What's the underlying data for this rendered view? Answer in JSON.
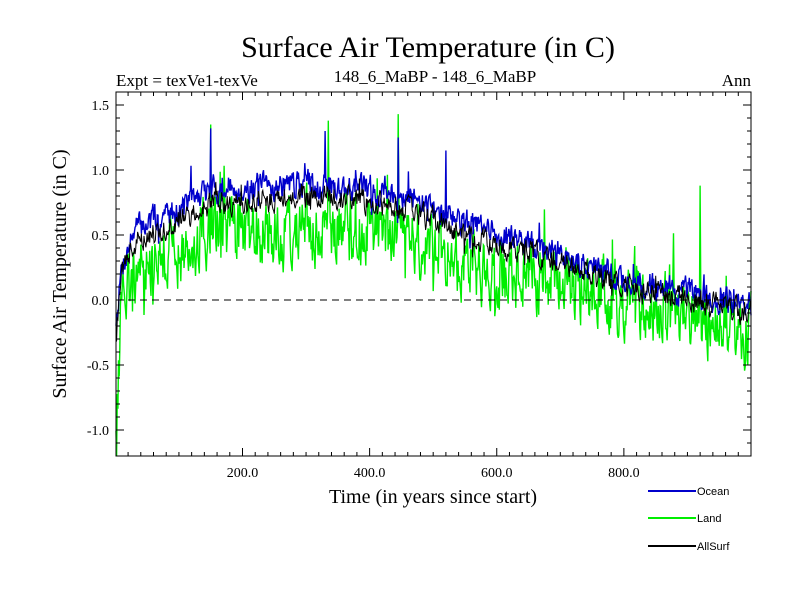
{
  "chart_data": {
    "type": "line",
    "title": "Surface Air Temperature (in C)",
    "subtitle_left": "Expt = texVe1-texVe",
    "subtitle_center": "148_6_MaBP - 148_6_MaBP",
    "subtitle_right": "Ann",
    "xlabel": "Time (in years since start)",
    "ylabel": "Surface Air Temperature (in C)",
    "xlim": [
      1,
      1000
    ],
    "ylim": [
      -1.2,
      1.6
    ],
    "x_ticks": [
      200,
      400,
      600,
      800
    ],
    "x_tick_labels": [
      "200.0",
      "400.0",
      "600.0",
      "800.0"
    ],
    "y_ticks": [
      -1.0,
      -0.5,
      0.0,
      0.5,
      1.0,
      1.5
    ],
    "y_tick_labels": [
      "-1.0",
      "-0.5",
      "0.0",
      "0.5",
      "1.0",
      "1.5"
    ],
    "reference_line": 0.0,
    "series": [
      {
        "name": "Ocean",
        "color": "#0000cc",
        "trend": [
          [
            1,
            -0.15
          ],
          [
            10,
            0.25
          ],
          [
            30,
            0.55
          ],
          [
            100,
            0.7
          ],
          [
            150,
            0.85
          ],
          [
            200,
            0.85
          ],
          [
            300,
            0.9
          ],
          [
            400,
            0.85
          ],
          [
            450,
            0.82
          ],
          [
            500,
            0.7
          ],
          [
            600,
            0.5
          ],
          [
            700,
            0.35
          ],
          [
            800,
            0.15
          ],
          [
            900,
            0.05
          ],
          [
            1000,
            -0.05
          ]
        ],
        "noise_amplitude": 0.14,
        "peaks": [
          [
            150,
            1.32
          ],
          [
            330,
            1.3
          ],
          [
            445,
            1.25
          ],
          [
            520,
            1.15
          ]
        ]
      },
      {
        "name": "Land",
        "color": "#00ee00",
        "trend": [
          [
            1,
            -0.9
          ],
          [
            10,
            0.0
          ],
          [
            30,
            0.3
          ],
          [
            100,
            0.4
          ],
          [
            150,
            0.55
          ],
          [
            200,
            0.5
          ],
          [
            300,
            0.55
          ],
          [
            400,
            0.5
          ],
          [
            450,
            0.55
          ],
          [
            500,
            0.4
          ],
          [
            600,
            0.2
          ],
          [
            700,
            0.15
          ],
          [
            800,
            0.0
          ],
          [
            900,
            -0.15
          ],
          [
            1000,
            -0.25
          ]
        ],
        "noise_amplitude": 0.35,
        "peaks": [
          [
            150,
            1.35
          ],
          [
            335,
            1.38
          ],
          [
            445,
            1.43
          ],
          [
            920,
            0.88
          ]
        ]
      },
      {
        "name": "AllSurf",
        "color": "#000000",
        "trend": [
          [
            1,
            -0.3
          ],
          [
            10,
            0.2
          ],
          [
            30,
            0.45
          ],
          [
            100,
            0.6
          ],
          [
            150,
            0.75
          ],
          [
            200,
            0.75
          ],
          [
            300,
            0.8
          ],
          [
            400,
            0.75
          ],
          [
            450,
            0.72
          ],
          [
            500,
            0.6
          ],
          [
            600,
            0.42
          ],
          [
            700,
            0.3
          ],
          [
            800,
            0.1
          ],
          [
            900,
            0.0
          ],
          [
            1000,
            -0.1
          ]
        ],
        "noise_amplitude": 0.12,
        "peaks": []
      }
    ],
    "legend": [
      "Ocean",
      "Land",
      "AllSurf"
    ],
    "legend_position": "bottom-right"
  }
}
